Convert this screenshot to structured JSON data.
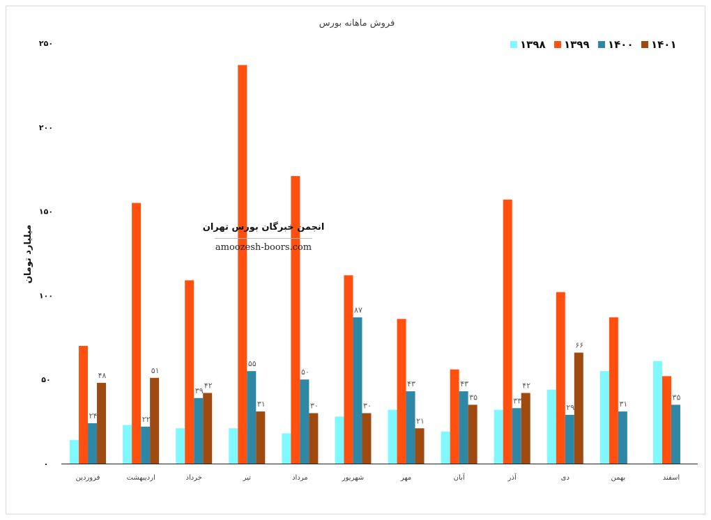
{
  "chart_data": {
    "type": "bar",
    "title": "فروش ماهانه بورس",
    "ylabel": "میلیارد تومان",
    "xlabel": "",
    "ylim": [
      0,
      250
    ],
    "yticks": [
      0,
      50,
      100,
      150,
      200,
      250
    ],
    "ytick_labels": [
      "۰",
      "۵۰",
      "۱۰۰",
      "۱۵۰",
      "۲۰۰",
      "۲۵۰"
    ],
    "legend_position": "top-right",
    "categories": [
      "فروردین",
      "اردیبهشت",
      "خرداد",
      "تیر",
      "مرداد",
      "شهریور",
      "مهر",
      "آبان",
      "آذر",
      "دی",
      "بهمن",
      "اسفند"
    ],
    "series": [
      {
        "name": "۱۳۹۸",
        "color": "#7ff9ff",
        "values": [
          14,
          23,
          21,
          21,
          18,
          28,
          32,
          19,
          32,
          44,
          55,
          61
        ],
        "labels": [
          "",
          "",
          "",
          "",
          "",
          "",
          "",
          "",
          "",
          "",
          "",
          ""
        ]
      },
      {
        "name": "۱۳۹۹",
        "color": "#ff5010",
        "values": [
          70,
          155,
          109,
          237,
          171,
          112,
          86,
          56,
          157,
          102,
          87,
          52
        ],
        "labels": [
          "",
          "",
          "",
          "",
          "",
          "",
          "",
          "",
          "",
          "",
          "",
          ""
        ]
      },
      {
        "name": "۱۴۰۰",
        "color": "#2f87a6",
        "values": [
          24,
          22,
          39,
          55,
          50,
          87,
          43,
          43,
          33,
          29,
          31,
          35
        ],
        "labels": [
          "۲۴",
          "۲۲",
          "۳۹",
          "۵۵",
          "۵۰",
          "۸۷",
          "۴۳",
          "۴۳",
          "۳۳",
          "۲۹",
          "۳۱",
          "۳۵"
        ]
      },
      {
        "name": "۱۴۰۱",
        "color": "#9e4a10",
        "values": [
          48,
          51,
          42,
          31,
          30,
          30,
          21,
          35,
          42,
          66,
          null,
          null
        ],
        "labels": [
          "۴۸",
          "۵۱",
          "۴۲",
          "۳۱",
          "۳۰",
          "۳۰",
          "۲۱",
          "۳۵",
          "۴۲",
          "۶۶",
          "",
          ""
        ]
      }
    ]
  },
  "watermark": {
    "title": "انجمن خبرگان بورس تهران",
    "url": "amoozesh-boors.com"
  }
}
